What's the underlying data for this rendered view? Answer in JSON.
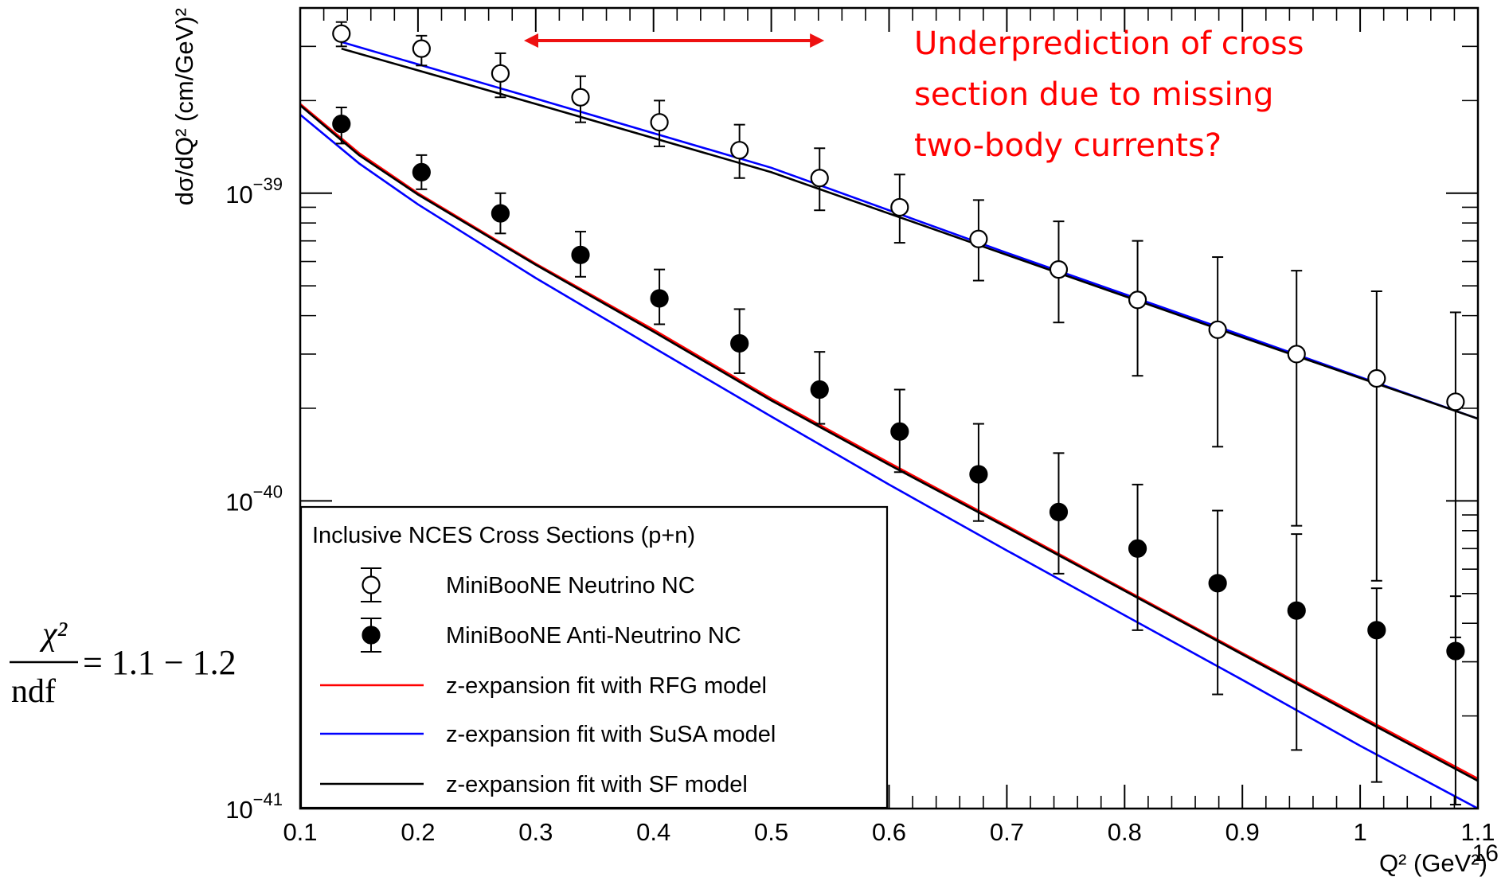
{
  "chart_data": {
    "type": "scatter",
    "title": "",
    "xlabel": "Q² (GeV²)",
    "ylabel": "dσ/dQ² (cm/GeV)²",
    "xlim": [
      0.1,
      1.1
    ],
    "ylim": [
      1e-41,
      4e-39
    ],
    "yscale": "log",
    "grid": false,
    "legend_position": "bottom-left",
    "legend_title": "Inclusive NCES Cross Sections (p+n)",
    "x_ticks": [
      "0.1",
      "0.2",
      "0.3",
      "0.4",
      "0.5",
      "0.6",
      "0.7",
      "0.8",
      "0.9",
      "1",
      "1.1"
    ],
    "y_ticks": [
      {
        "base": "10",
        "exp": "−41",
        "value": 1e-41
      },
      {
        "base": "10",
        "exp": "−40",
        "value": 1e-40
      },
      {
        "base": "10",
        "exp": "−39",
        "value": 1e-39
      }
    ],
    "series": [
      {
        "name": "MiniBooNE Neutrino NC",
        "kind": "points",
        "marker": "open-circle",
        "color": "#000000",
        "x": [
          0.135,
          0.203,
          0.27,
          0.338,
          0.405,
          0.473,
          0.541,
          0.609,
          0.676,
          0.744,
          0.811,
          0.879,
          0.946,
          1.014,
          1.081
        ],
        "y": [
          3.3e-39,
          2.95e-39,
          2.45e-39,
          2.05e-39,
          1.7e-39,
          1.38e-39,
          1.12e-39,
          9e-40,
          7.1e-40,
          5.65e-40,
          4.5e-40,
          3.6e-40,
          3e-40,
          2.5e-40,
          2.1e-40
        ],
        "y_low": [
          3e-39,
          2.6e-39,
          2.05e-39,
          1.7e-39,
          1.42e-39,
          1.12e-39,
          8.8e-40,
          6.9e-40,
          5.2e-40,
          3.8e-40,
          2.55e-40,
          1.5e-40,
          8.3e-41,
          5.5e-41,
          3.6e-41
        ],
        "y_high": [
          3.6e-39,
          3.25e-39,
          2.85e-39,
          2.4e-39,
          2e-39,
          1.67e-39,
          1.4e-39,
          1.15e-39,
          9.5e-40,
          8.1e-40,
          7e-40,
          6.2e-40,
          5.6e-40,
          4.8e-40,
          4.1e-40
        ]
      },
      {
        "name": "MiniBooNE Anti-Neutrino NC",
        "kind": "points",
        "marker": "filled-circle",
        "color": "#000000",
        "x": [
          0.135,
          0.203,
          0.27,
          0.338,
          0.405,
          0.473,
          0.541,
          0.609,
          0.676,
          0.744,
          0.811,
          0.879,
          0.946,
          1.014,
          1.081
        ],
        "y": [
          1.68e-39,
          1.17e-39,
          8.6e-40,
          6.3e-40,
          4.55e-40,
          3.25e-40,
          2.3e-40,
          1.68e-40,
          1.22e-40,
          9.2e-41,
          7e-41,
          5.4e-41,
          4.4e-41,
          3.8e-41,
          3.25e-41
        ],
        "y_low": [
          1.45e-39,
          1.03e-39,
          7.4e-40,
          5.35e-40,
          3.75e-40,
          2.6e-40,
          1.78e-40,
          1.24e-40,
          8.6e-41,
          5.8e-41,
          3.8e-41,
          2.35e-41,
          1.55e-41,
          1.22e-41,
          1.03e-41
        ],
        "y_high": [
          1.9e-39,
          1.33e-39,
          1e-39,
          7.5e-40,
          5.65e-40,
          4.2e-40,
          3.05e-40,
          2.3e-40,
          1.78e-40,
          1.43e-40,
          1.13e-40,
          9.3e-41,
          7.8e-41,
          5.2e-41,
          4.9e-41
        ]
      },
      {
        "name": "z-expansion fit with RFG model",
        "kind": "line",
        "color": "#ff0000",
        "x": [
          0.1,
          0.15,
          0.2,
          0.3,
          0.4,
          0.5,
          0.6,
          0.7,
          0.8,
          0.9,
          1.0,
          1.1
        ],
        "y": [
          1.95e-39,
          1.35e-39,
          1e-39,
          5.9e-40,
          3.6e-40,
          2.15e-40,
          1.33e-40,
          8.3e-41,
          5.15e-41,
          3.2e-41,
          2e-41,
          1.25e-41
        ]
      },
      {
        "name": "z-expansion fit with SuSA model",
        "kind": "line",
        "color": "#0000ff",
        "x": [
          0.1,
          0.15,
          0.2,
          0.3,
          0.4,
          0.5,
          0.6,
          0.7,
          0.8,
          0.9,
          1.0,
          1.1
        ],
        "y": [
          1.8e-39,
          1.25e-39,
          9.2e-40,
          5.3e-40,
          3.15e-40,
          1.88e-40,
          1.13e-40,
          6.9e-41,
          4.25e-41,
          2.62e-41,
          1.6e-41,
          1e-41
        ],
        "neutrino_branch": {
          "x": [
            0.135,
            0.3,
            0.5,
            0.7,
            0.9,
            1.1
          ],
          "y": [
            3.1e-39,
            2.03e-39,
            1.21e-39,
            6.4e-40,
            3.45e-40,
            1.85e-40
          ]
        }
      },
      {
        "name": "z-expansion fit with SF model",
        "kind": "line",
        "color": "#000000",
        "x": [
          0.1,
          0.15,
          0.2,
          0.3,
          0.4,
          0.5,
          0.6,
          0.7,
          0.8,
          0.9,
          1.0,
          1.1
        ],
        "y": [
          1.93e-39,
          1.33e-39,
          9.9e-40,
          5.85e-40,
          3.55e-40,
          2.12e-40,
          1.31e-40,
          8.2e-41,
          5.1e-41,
          3.17e-41,
          1.97e-41,
          1.23e-41
        ],
        "neutrino_branch": {
          "x": [
            0.135,
            0.3,
            0.5,
            0.7,
            0.9,
            1.1
          ],
          "y": [
            2.95e-39,
            1.95e-39,
            1.17e-39,
            6.3e-40,
            3.4e-40,
            1.85e-40
          ]
        }
      }
    ],
    "annotations": {
      "arrow_x_range": [
        0.29,
        0.545
      ],
      "arrow_color": "#ee1111",
      "text_lines": [
        "Underprediction of cross",
        "section due to missing",
        "two-body currents?"
      ],
      "text_color": "#ff0000"
    }
  },
  "chi2": {
    "numerator": "χ²",
    "denominator": "ndf",
    "value": "= 1.1 − 1.2"
  },
  "slide_number": "16"
}
